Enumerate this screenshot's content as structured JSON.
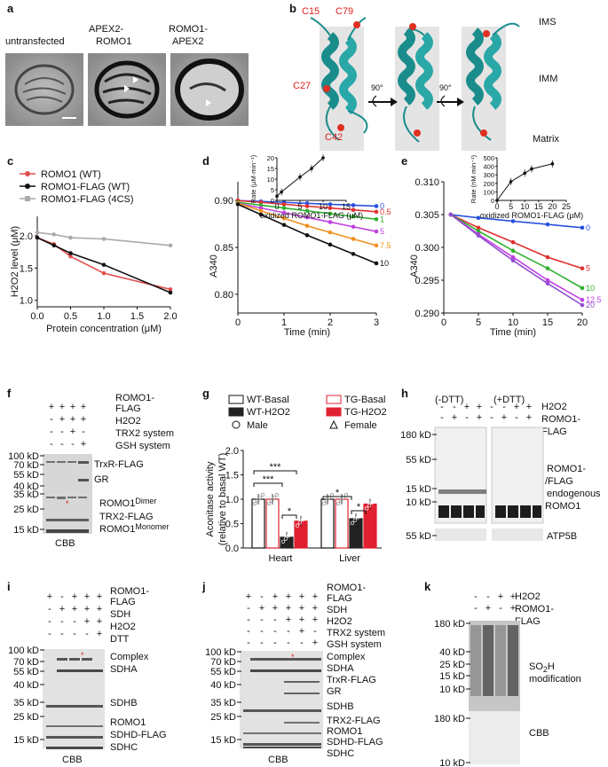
{
  "figure": {
    "a": {
      "label": "a",
      "panels": [
        "untransfected",
        "APEX2-\nROMO1",
        "ROMO1-\nAPEX2"
      ]
    },
    "b": {
      "label": "b",
      "residues": [
        "C15",
        "C79",
        "C27",
        "C42"
      ],
      "rotation": [
        "90°",
        "90°"
      ],
      "regions": [
        "IMS",
        "IMM",
        "Matrix"
      ]
    },
    "c": {
      "label": "c",
      "legend": [
        "ROMO1 (WT)",
        "ROMO1-FLAG (WT)",
        "ROMO1-FLAG (4CS)"
      ],
      "ylabel": "H2O2 level (μM)",
      "xlabel": "Protein concentration (μM)",
      "xticks": [
        "0.0",
        "0.5",
        "1.0",
        "1.5",
        "2.0"
      ],
      "yticks": [
        "1.0",
        "1.5",
        "2.0"
      ]
    },
    "d": {
      "label": "d",
      "ylabel": "A340",
      "xlabel": "Time (min)",
      "xticks": [
        "0",
        "1",
        "2",
        "3"
      ],
      "yticks": [
        "0.80",
        "0.85",
        "0.90"
      ],
      "inset_ylabel": "Rate (μM·min⁻¹)",
      "inset_xlabel": "oxidized ROMO1-FLAG (μM)",
      "inset_xticks": [
        "0",
        "5",
        "10",
        "15"
      ],
      "inset_yticks": [
        "0",
        "5",
        "10",
        "15",
        "20"
      ],
      "series_labels": [
        "0",
        "0.5",
        "1",
        "5",
        "7.5",
        "10"
      ]
    },
    "e": {
      "label": "e",
      "ylabel": "A340",
      "xlabel": "Time (min)",
      "xticks": [
        "0",
        "5",
        "10",
        "15",
        "20"
      ],
      "yticks": [
        "0.290",
        "0.295",
        "0.300",
        "0.305",
        "0.310"
      ],
      "inset_ylabel": "Rate (nM·min⁻¹)",
      "inset_xlabel": "oxidized ROMO1-FLAG (μM)",
      "inset_xticks": [
        "0",
        "5",
        "10",
        "15",
        "20",
        "25"
      ],
      "inset_yticks": [
        "0",
        "100",
        "200",
        "300",
        "400",
        "500"
      ],
      "series_labels": [
        "0",
        "5",
        "10",
        "12.5",
        "20"
      ]
    },
    "f": {
      "label": "f",
      "conditions": [
        "ROMO1-\nFLAG",
        "H2O2",
        "TRX2 system",
        "GSH system"
      ],
      "signs": [
        [
          "+",
          "+",
          "+",
          "+"
        ],
        [
          "-",
          "+",
          "+",
          "+"
        ],
        [
          "-",
          "-",
          "+",
          "-"
        ],
        [
          "-",
          "-",
          "-",
          "+"
        ]
      ],
      "markers": [
        "100 kD",
        "70 kD",
        "55 kD",
        "40 kD",
        "35 kD",
        "25 kD",
        "15 kD"
      ],
      "bands": [
        "TrxR-FLAG",
        "GR",
        "ROMO1Dimer",
        "TRX2-FLAG",
        "ROMO1Monomer"
      ],
      "stain": "CBB"
    },
    "g": {
      "label": "g",
      "legend": [
        "WT-Basal",
        "TG-Basal",
        "WT-H2O2",
        "TG-H2O2",
        "Male",
        "Female"
      ],
      "ylabel": "Aconitase activity\n(relative to basal WT)",
      "yticks": [
        "0.0",
        "0.5",
        "1.0",
        "1.5",
        "2.0"
      ],
      "groups": [
        "Heart",
        "Liver"
      ],
      "sig": [
        "***",
        "***",
        "*",
        "*",
        "*"
      ]
    },
    "h": {
      "label": "h",
      "conds": [
        "(-DTT)",
        "(+DTT)"
      ],
      "conditions": [
        "H2O2",
        "ROMO1-\nFLAG"
      ],
      "markers": [
        "180 kD",
        "55 kD",
        "15 kD",
        "10 kD",
        "55 kD"
      ],
      "bands": [
        "ROMO1-\nFLAG",
        "ROMO1-\n/FLAG",
        "endogenous\nROMO1"
      ],
      "loading": "ATP5B"
    },
    "i": {
      "label": "i",
      "conditions": [
        "ROMO1-\nFLAG",
        "SDH",
        "H2O2",
        "DTT"
      ],
      "markers": [
        "100 kD",
        "70 kD",
        "55 kD",
        "40 kD",
        "35 kD",
        "25 kD",
        "15 kD"
      ],
      "bands": [
        "Complex",
        "SDHA",
        "SDHB",
        "ROMO1",
        "SDHD-FLAG",
        "SDHC"
      ],
      "stain": "CBB"
    },
    "j": {
      "label": "j",
      "conditions": [
        "ROMO1-\nFLAG",
        "SDH",
        "H2O2",
        "TRX2 system",
        "GSH system"
      ],
      "markers": [
        "100 kD",
        "70 kD",
        "55 kD",
        "40 kD",
        "35 kD",
        "25 kD",
        "15 kD"
      ],
      "bands": [
        "Complex",
        "SDHA",
        "TrxR-FLAG",
        "GR",
        "SDHB",
        "TRX2-FLAG",
        "ROMO1",
        "SDHD-FLAG",
        "SDHC"
      ],
      "stain": "CBB"
    },
    "k": {
      "label": "k",
      "conditions": [
        "H2O2",
        "ROMO1-\nFLAG"
      ],
      "markers": [
        "180 kD",
        "40 kD",
        "25 kD",
        "15 kD",
        "10 kD",
        "180 kD",
        "10 kD"
      ],
      "bands": [
        "SO2H\nmodification",
        "CBB"
      ]
    }
  },
  "chart_data": [
    {
      "type": "line",
      "panel": "c",
      "xlabel": "Protein concentration (μM)",
      "ylabel": "H2O2 level (μM)",
      "xlim": [
        0,
        2.0
      ],
      "ylim": [
        0.9,
        2.3
      ],
      "series": [
        {
          "name": "ROMO1 (WT)",
          "color": "#e05050",
          "x": [
            0,
            0.25,
            0.5,
            1.0,
            2.0
          ],
          "y": [
            1.97,
            1.87,
            1.68,
            1.42,
            1.17
          ]
        },
        {
          "name": "ROMO1-FLAG (WT)",
          "color": "#111111",
          "x": [
            0,
            0.25,
            0.5,
            1.0,
            2.0
          ],
          "y": [
            1.97,
            1.85,
            1.73,
            1.55,
            1.12
          ]
        },
        {
          "name": "ROMO1-FLAG (4CS)",
          "color": "#aaaaaa",
          "x": [
            0,
            0.25,
            0.5,
            1.0,
            2.0
          ],
          "y": [
            2.05,
            2.02,
            1.97,
            1.95,
            1.85
          ]
        }
      ]
    },
    {
      "type": "line",
      "panel": "d",
      "xlabel": "Time (min)",
      "ylabel": "A340",
      "xlim": [
        0,
        3
      ],
      "ylim": [
        0.78,
        0.92
      ],
      "series": [
        {
          "name": "0",
          "color": "#2850e0",
          "x": [
            0,
            0.5,
            1,
            1.5,
            2,
            2.5,
            3
          ],
          "y": [
            0.9,
            0.899,
            0.898,
            0.897,
            0.896,
            0.895,
            0.894
          ]
        },
        {
          "name": "0.5",
          "color": "#e03030",
          "x": [
            0,
            0.5,
            1,
            1.5,
            2,
            2.5,
            3
          ],
          "y": [
            0.9,
            0.898,
            0.896,
            0.894,
            0.892,
            0.89,
            0.888
          ]
        },
        {
          "name": "1",
          "color": "#30b030",
          "x": [
            0,
            0.5,
            1,
            1.5,
            2,
            2.5,
            3
          ],
          "y": [
            0.898,
            0.895,
            0.892,
            0.889,
            0.886,
            0.883,
            0.88
          ]
        },
        {
          "name": "5",
          "color": "#c040e0",
          "x": [
            0,
            0.5,
            1,
            1.5,
            2,
            2.5,
            3
          ],
          "y": [
            0.897,
            0.892,
            0.887,
            0.882,
            0.877,
            0.872,
            0.867
          ]
        },
        {
          "name": "7.5",
          "color": "#f09020",
          "x": [
            0,
            0.5,
            1,
            1.5,
            2,
            2.5,
            3
          ],
          "y": [
            0.897,
            0.889,
            0.881,
            0.873,
            0.866,
            0.859,
            0.852
          ]
        },
        {
          "name": "10",
          "color": "#111111",
          "x": [
            0,
            0.5,
            1,
            1.5,
            2,
            2.5,
            3
          ],
          "y": [
            0.896,
            0.885,
            0.874,
            0.863,
            0.853,
            0.843,
            0.833
          ]
        }
      ]
    },
    {
      "type": "scatter",
      "panel": "d-inset",
      "xlabel": "oxidized ROMO1-FLAG (μM)",
      "ylabel": "Rate (μM·min⁻¹)",
      "xlim": [
        0,
        15
      ],
      "ylim": [
        0,
        20
      ],
      "x": [
        0,
        1,
        5,
        7.5,
        10
      ],
      "y": [
        2,
        4,
        11,
        15,
        20
      ]
    },
    {
      "type": "line",
      "panel": "e",
      "xlabel": "Time (min)",
      "ylabel": "A340",
      "xlim": [
        0,
        20
      ],
      "ylim": [
        0.29,
        0.31
      ],
      "series": [
        {
          "name": "0",
          "color": "#2850e0",
          "x": [
            1,
            5,
            10,
            15,
            20
          ],
          "y": [
            0.305,
            0.3045,
            0.304,
            0.3035,
            0.303
          ]
        },
        {
          "name": "5",
          "color": "#e03030",
          "x": [
            1,
            5,
            10,
            15,
            20
          ],
          "y": [
            0.305,
            0.303,
            0.3008,
            0.2985,
            0.2968
          ]
        },
        {
          "name": "10",
          "color": "#30b030",
          "x": [
            1,
            5,
            10,
            15,
            20
          ],
          "y": [
            0.305,
            0.3025,
            0.2995,
            0.2968,
            0.2938
          ]
        },
        {
          "name": "12.5",
          "color": "#c040e0",
          "x": [
            1,
            5,
            10,
            15,
            20
          ],
          "y": [
            0.305,
            0.302,
            0.2985,
            0.295,
            0.292
          ]
        },
        {
          "name": "20",
          "color": "#9050d0",
          "x": [
            1,
            5,
            10,
            15,
            20
          ],
          "y": [
            0.305,
            0.3018,
            0.298,
            0.2945,
            0.2912
          ]
        }
      ]
    },
    {
      "type": "scatter",
      "panel": "e-inset",
      "xlabel": "oxidized ROMO1-FLAG (μM)",
      "ylabel": "Rate (nM·min⁻¹)",
      "xlim": [
        0,
        25
      ],
      "ylim": [
        0,
        500
      ],
      "x": [
        0,
        5,
        10,
        12.5,
        20
      ],
      "y": [
        0,
        220,
        320,
        370,
        430
      ]
    },
    {
      "type": "bar",
      "panel": "g",
      "categories": [
        "Heart",
        "Liver"
      ],
      "ylabel": "Aconitase activity (relative to basal WT)",
      "ylim": [
        0,
        2.0
      ],
      "series": [
        {
          "name": "WT-Basal",
          "values": [
            1.0,
            1.0
          ]
        },
        {
          "name": "TG-Basal",
          "values": [
            1.0,
            1.0
          ]
        },
        {
          "name": "WT-H2O2",
          "values": [
            0.22,
            0.6
          ]
        },
        {
          "name": "TG-H2O2",
          "values": [
            0.55,
            0.9
          ]
        }
      ]
    }
  ]
}
